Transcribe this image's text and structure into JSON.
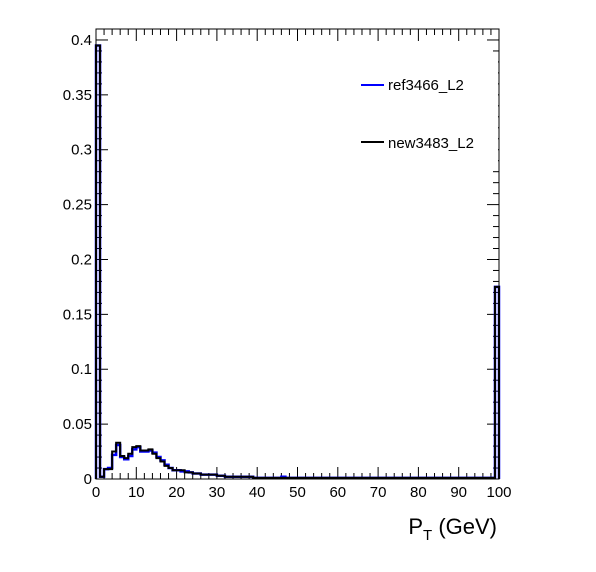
{
  "chart_data": {
    "type": "step-histogram",
    "xlabel_main": "P",
    "xlabel_sub": "T",
    "xlabel_unit": " (GeV)",
    "xlim": [
      0,
      100
    ],
    "ylim": [
      0,
      0.41
    ],
    "xticks": [
      0,
      10,
      20,
      30,
      40,
      50,
      60,
      70,
      80,
      90,
      100
    ],
    "yticks": [
      0,
      0.05,
      0.1,
      0.15,
      0.2,
      0.25,
      0.3,
      0.35,
      0.4
    ],
    "legend_position": "top-right",
    "grid": false,
    "bin_width": 1,
    "series": [
      {
        "name": "ref3466_L2",
        "color": "#0000ff",
        "values": [
          0.395,
          0.002,
          0.009,
          0.01,
          0.022,
          0.031,
          0.02,
          0.018,
          0.021,
          0.027,
          0.029,
          0.025,
          0.025,
          0.026,
          0.024,
          0.02,
          0.017,
          0.013,
          0.01,
          0.008,
          0.008,
          0.007,
          0.007,
          0.006,
          0.005,
          0.005,
          0.004,
          0.004,
          0.004,
          0.004,
          0.003,
          0.003,
          0.002,
          0.002,
          0.002,
          0.002,
          0.002,
          0.002,
          0.002,
          0.001,
          0.001,
          0.001,
          0.001,
          0.001,
          0.001,
          0.001,
          0.002,
          0.001,
          0.001,
          0.001,
          0.001,
          0.001,
          0.001,
          0.001,
          0.001,
          0.001,
          0.001,
          0.001,
          0.001,
          0.001,
          0.001,
          0.001,
          0.001,
          0.001,
          0.001,
          0.001,
          0.001,
          0.001,
          0.001,
          0.001,
          0.001,
          0.001,
          0.001,
          0.001,
          0.001,
          0.001,
          0.001,
          0.001,
          0.001,
          0.001,
          0.001,
          0.001,
          0.001,
          0.001,
          0.001,
          0.001,
          0.001,
          0.001,
          0.001,
          0.001,
          0.001,
          0.001,
          0.001,
          0.001,
          0.001,
          0.001,
          0.001,
          0.001,
          0.001,
          0.175
        ]
      },
      {
        "name": "new3483_L2",
        "color": "#000000",
        "values": [
          0.395,
          0.002,
          0.009,
          0.009,
          0.025,
          0.033,
          0.021,
          0.019,
          0.023,
          0.029,
          0.03,
          0.026,
          0.026,
          0.027,
          0.023,
          0.019,
          0.016,
          0.012,
          0.01,
          0.008,
          0.008,
          0.008,
          0.006,
          0.006,
          0.005,
          0.005,
          0.004,
          0.004,
          0.004,
          0.004,
          0.003,
          0.003,
          0.002,
          0.002,
          0.002,
          0.002,
          0.002,
          0.002,
          0.002,
          0.001,
          0.001,
          0.001,
          0.001,
          0.001,
          0.001,
          0.001,
          0.001,
          0.001,
          0.001,
          0.001,
          0.001,
          0.001,
          0.001,
          0.001,
          0.001,
          0.001,
          0.001,
          0.001,
          0.001,
          0.001,
          0.001,
          0.001,
          0.001,
          0.001,
          0.001,
          0.001,
          0.001,
          0.001,
          0.001,
          0.001,
          0.001,
          0.001,
          0.001,
          0.001,
          0.001,
          0.001,
          0.001,
          0.001,
          0.001,
          0.001,
          0.001,
          0.001,
          0.001,
          0.001,
          0.001,
          0.001,
          0.001,
          0.001,
          0.001,
          0.001,
          0.001,
          0.001,
          0.001,
          0.001,
          0.001,
          0.001,
          0.001,
          0.001,
          0.001,
          0.175
        ]
      }
    ]
  }
}
